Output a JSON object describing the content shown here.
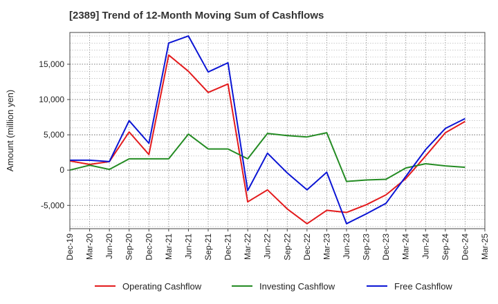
{
  "chart_data": {
    "type": "line",
    "title": "[2389]  Trend of 12-Month Moving Sum of Cashflows",
    "xlabel": "",
    "ylabel": "Amount (million yen)",
    "categories": [
      "Dec-19",
      "Mar-20",
      "Jun-20",
      "Sep-20",
      "Dec-20",
      "Mar-21",
      "Jun-21",
      "Sep-21",
      "Dec-21",
      "Mar-22",
      "Jun-22",
      "Sep-22",
      "Dec-22",
      "Mar-23",
      "Jun-23",
      "Sep-23",
      "Dec-23",
      "Mar-24",
      "Jun-24",
      "Sep-24",
      "Dec-24",
      "Mar-25"
    ],
    "ylim": [
      -8300,
      19500
    ],
    "yticks": [
      -5000,
      0,
      5000,
      10000,
      15000
    ],
    "ytick_labels": [
      "-5,000",
      "0",
      "5,000",
      "10,000",
      "15,000"
    ],
    "grid": true,
    "legend_position": "bottom",
    "series": [
      {
        "name": "Operating Cashflow",
        "color": "#e31a1c",
        "values": [
          1300,
          800,
          1200,
          5400,
          2200,
          16300,
          14000,
          11000,
          12200,
          -4500,
          -2800,
          -5500,
          -7600,
          -5700,
          -6000,
          -4900,
          -3500,
          -1200,
          2000,
          5300,
          6900,
          null
        ]
      },
      {
        "name": "Investing Cashflow",
        "color": "#238b22",
        "values": [
          0,
          700,
          100,
          1600,
          1600,
          1600,
          5100,
          3000,
          3000,
          1600,
          5200,
          4900,
          4700,
          5300,
          -1600,
          -1400,
          -1300,
          300,
          900,
          600,
          400,
          null
        ]
      },
      {
        "name": "Free Cashflow",
        "color": "#0a14d4",
        "values": [
          1400,
          1400,
          1200,
          7000,
          3800,
          18000,
          19000,
          13900,
          15200,
          -2900,
          2400,
          -400,
          -2800,
          -300,
          -7600,
          -6200,
          -4700,
          -900,
          2900,
          5900,
          7300,
          null
        ]
      }
    ]
  }
}
